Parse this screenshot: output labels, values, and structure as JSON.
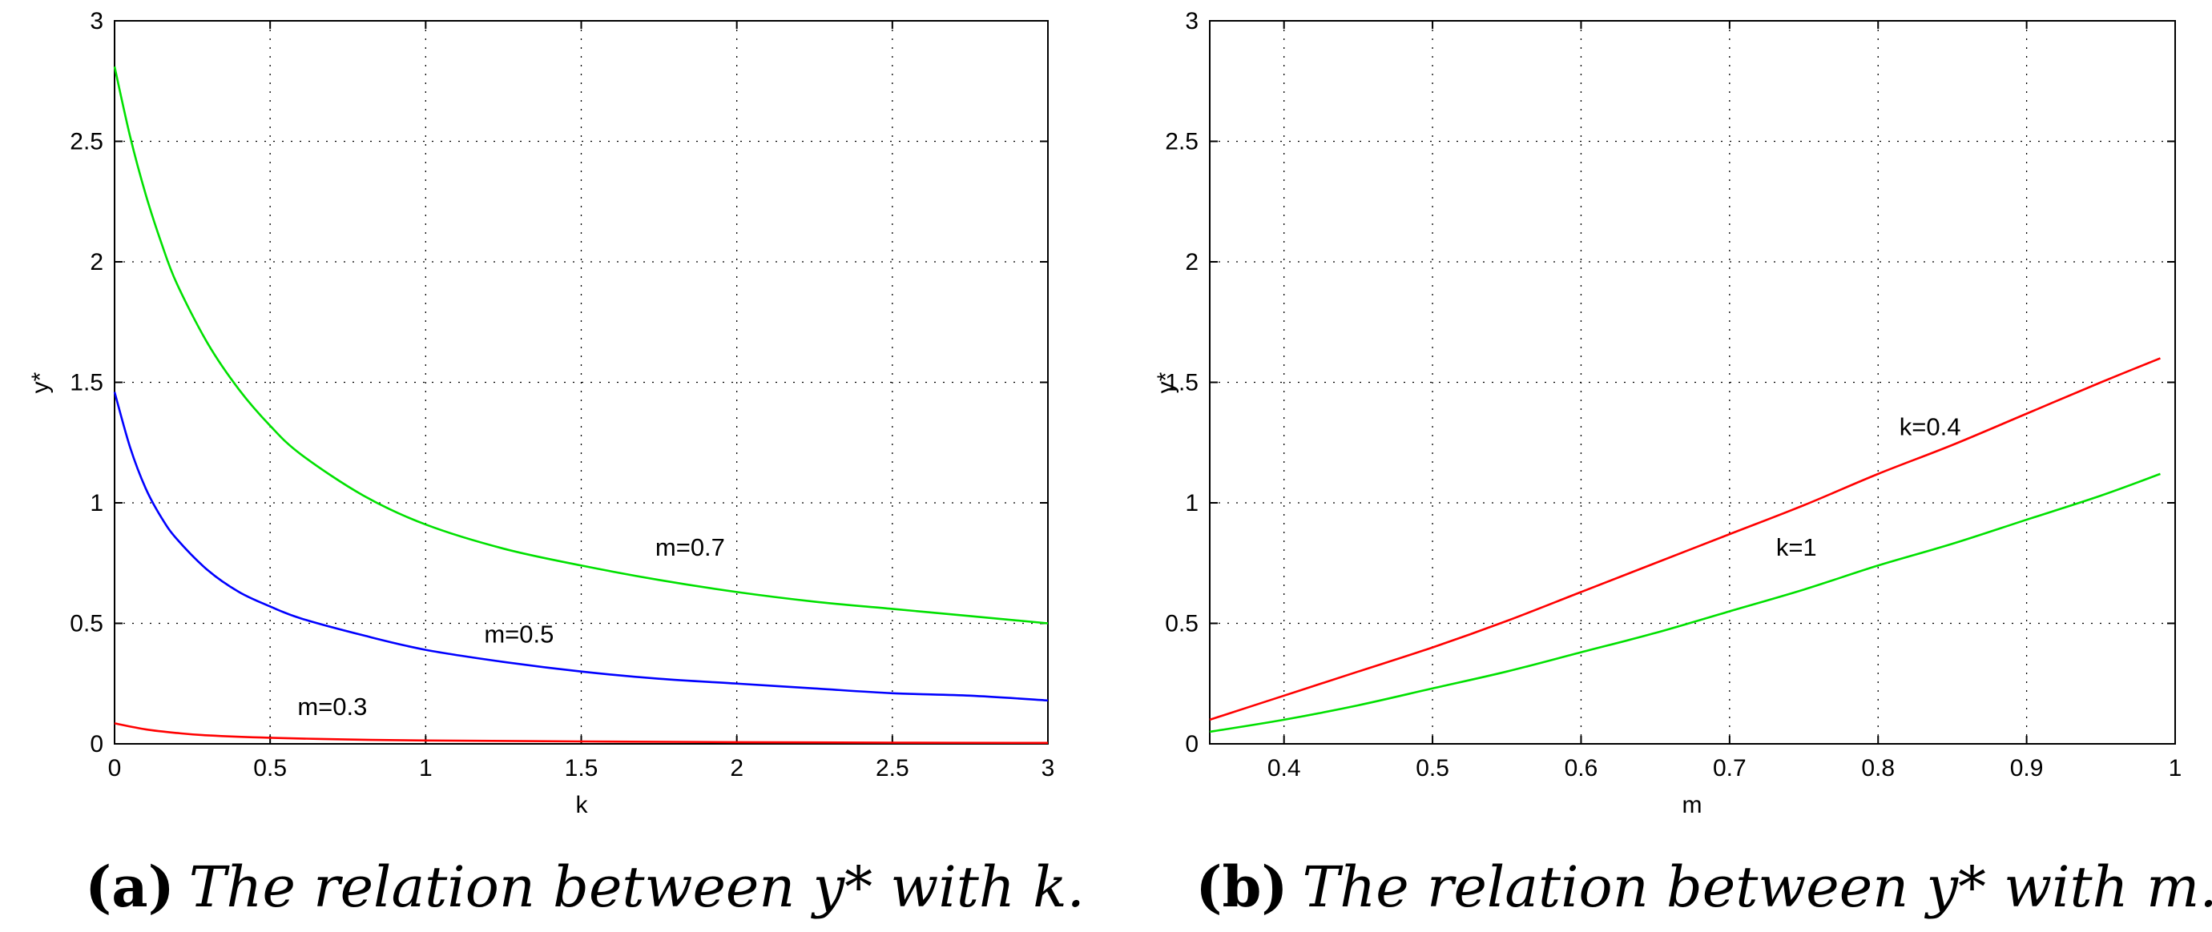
{
  "chart_data": [
    {
      "type": "line",
      "xlabel": "k",
      "ylabel": "y*",
      "xlim": [
        0,
        3
      ],
      "ylim": [
        0,
        3
      ],
      "xticks": [
        "0",
        "0.5",
        "1",
        "1.5",
        "2",
        "2.5",
        "3"
      ],
      "yticks": [
        "0",
        "0.5",
        "1",
        "1.5",
        "2",
        "2.5",
        "3"
      ],
      "grid": true,
      "series": [
        {
          "name": "m=0.7",
          "color": "#00e000",
          "x": [
            0,
            0.05,
            0.1,
            0.15,
            0.2,
            0.3,
            0.4,
            0.5,
            0.6,
            0.8,
            1.0,
            1.25,
            1.5,
            1.75,
            2.0,
            2.25,
            2.5,
            2.75,
            3.0
          ],
          "y": [
            2.81,
            2.52,
            2.28,
            2.08,
            1.91,
            1.66,
            1.47,
            1.32,
            1.2,
            1.03,
            0.91,
            0.81,
            0.74,
            0.68,
            0.63,
            0.59,
            0.56,
            0.53,
            0.5
          ]
        },
        {
          "name": "m=0.5",
          "color": "#0000ff",
          "x": [
            0,
            0.05,
            0.1,
            0.15,
            0.2,
            0.3,
            0.4,
            0.5,
            0.6,
            0.8,
            1.0,
            1.25,
            1.5,
            1.75,
            2.0,
            2.25,
            2.5,
            2.75,
            3.0
          ],
          "y": [
            1.46,
            1.23,
            1.06,
            0.94,
            0.85,
            0.72,
            0.63,
            0.57,
            0.52,
            0.45,
            0.39,
            0.34,
            0.3,
            0.27,
            0.25,
            0.23,
            0.21,
            0.2,
            0.18
          ]
        },
        {
          "name": "m=0.3",
          "color": "#ff0000",
          "x": [
            0,
            0.1,
            0.2,
            0.3,
            0.5,
            0.75,
            1.0,
            1.5,
            2.0,
            2.5,
            3.0
          ],
          "y": [
            0.085,
            0.06,
            0.045,
            0.035,
            0.025,
            0.018,
            0.014,
            0.01,
            0.007,
            0.005,
            0.004
          ]
        }
      ],
      "annotations": [
        {
          "text": "m=0.7",
          "x": 1.85,
          "y": 0.78
        },
        {
          "text": "m=0.5",
          "x": 1.3,
          "y": 0.42
        },
        {
          "text": "m=0.3",
          "x": 0.7,
          "y": 0.12
        }
      ]
    },
    {
      "type": "line",
      "xlabel": "m",
      "ylabel": "y*",
      "xlim": [
        0.35,
        1.0
      ],
      "ylim": [
        0,
        3
      ],
      "xticks": [
        "0.4",
        "0.5",
        "0.6",
        "0.7",
        "0.8",
        "0.9",
        "1"
      ],
      "yticks": [
        "0",
        "0.5",
        "1",
        "1.5",
        "2",
        "2.5",
        "3"
      ],
      "grid": true,
      "series": [
        {
          "name": "k=0.4",
          "color": "#ff0000",
          "x": [
            0.35,
            0.4,
            0.45,
            0.5,
            0.55,
            0.6,
            0.65,
            0.7,
            0.75,
            0.8,
            0.85,
            0.9,
            0.95,
            0.99
          ],
          "y": [
            0.1,
            0.2,
            0.3,
            0.4,
            0.51,
            0.63,
            0.75,
            0.87,
            0.99,
            1.12,
            1.24,
            1.37,
            1.5,
            1.6
          ]
        },
        {
          "name": "k=1",
          "color": "#00e000",
          "x": [
            0.35,
            0.4,
            0.45,
            0.5,
            0.55,
            0.6,
            0.65,
            0.7,
            0.75,
            0.8,
            0.85,
            0.9,
            0.95,
            0.99
          ],
          "y": [
            0.05,
            0.1,
            0.16,
            0.23,
            0.3,
            0.38,
            0.46,
            0.55,
            0.64,
            0.74,
            0.83,
            0.93,
            1.03,
            1.12
          ]
        }
      ],
      "annotations": [
        {
          "text": "k=0.4",
          "x": 0.835,
          "y": 1.28
        },
        {
          "text": "k=1",
          "x": 0.745,
          "y": 0.78
        }
      ]
    }
  ],
  "captions": [
    {
      "label": "(a)",
      "text": "The relation between y* with k."
    },
    {
      "label": "(b)",
      "text": "The relation between y* with m."
    }
  ]
}
